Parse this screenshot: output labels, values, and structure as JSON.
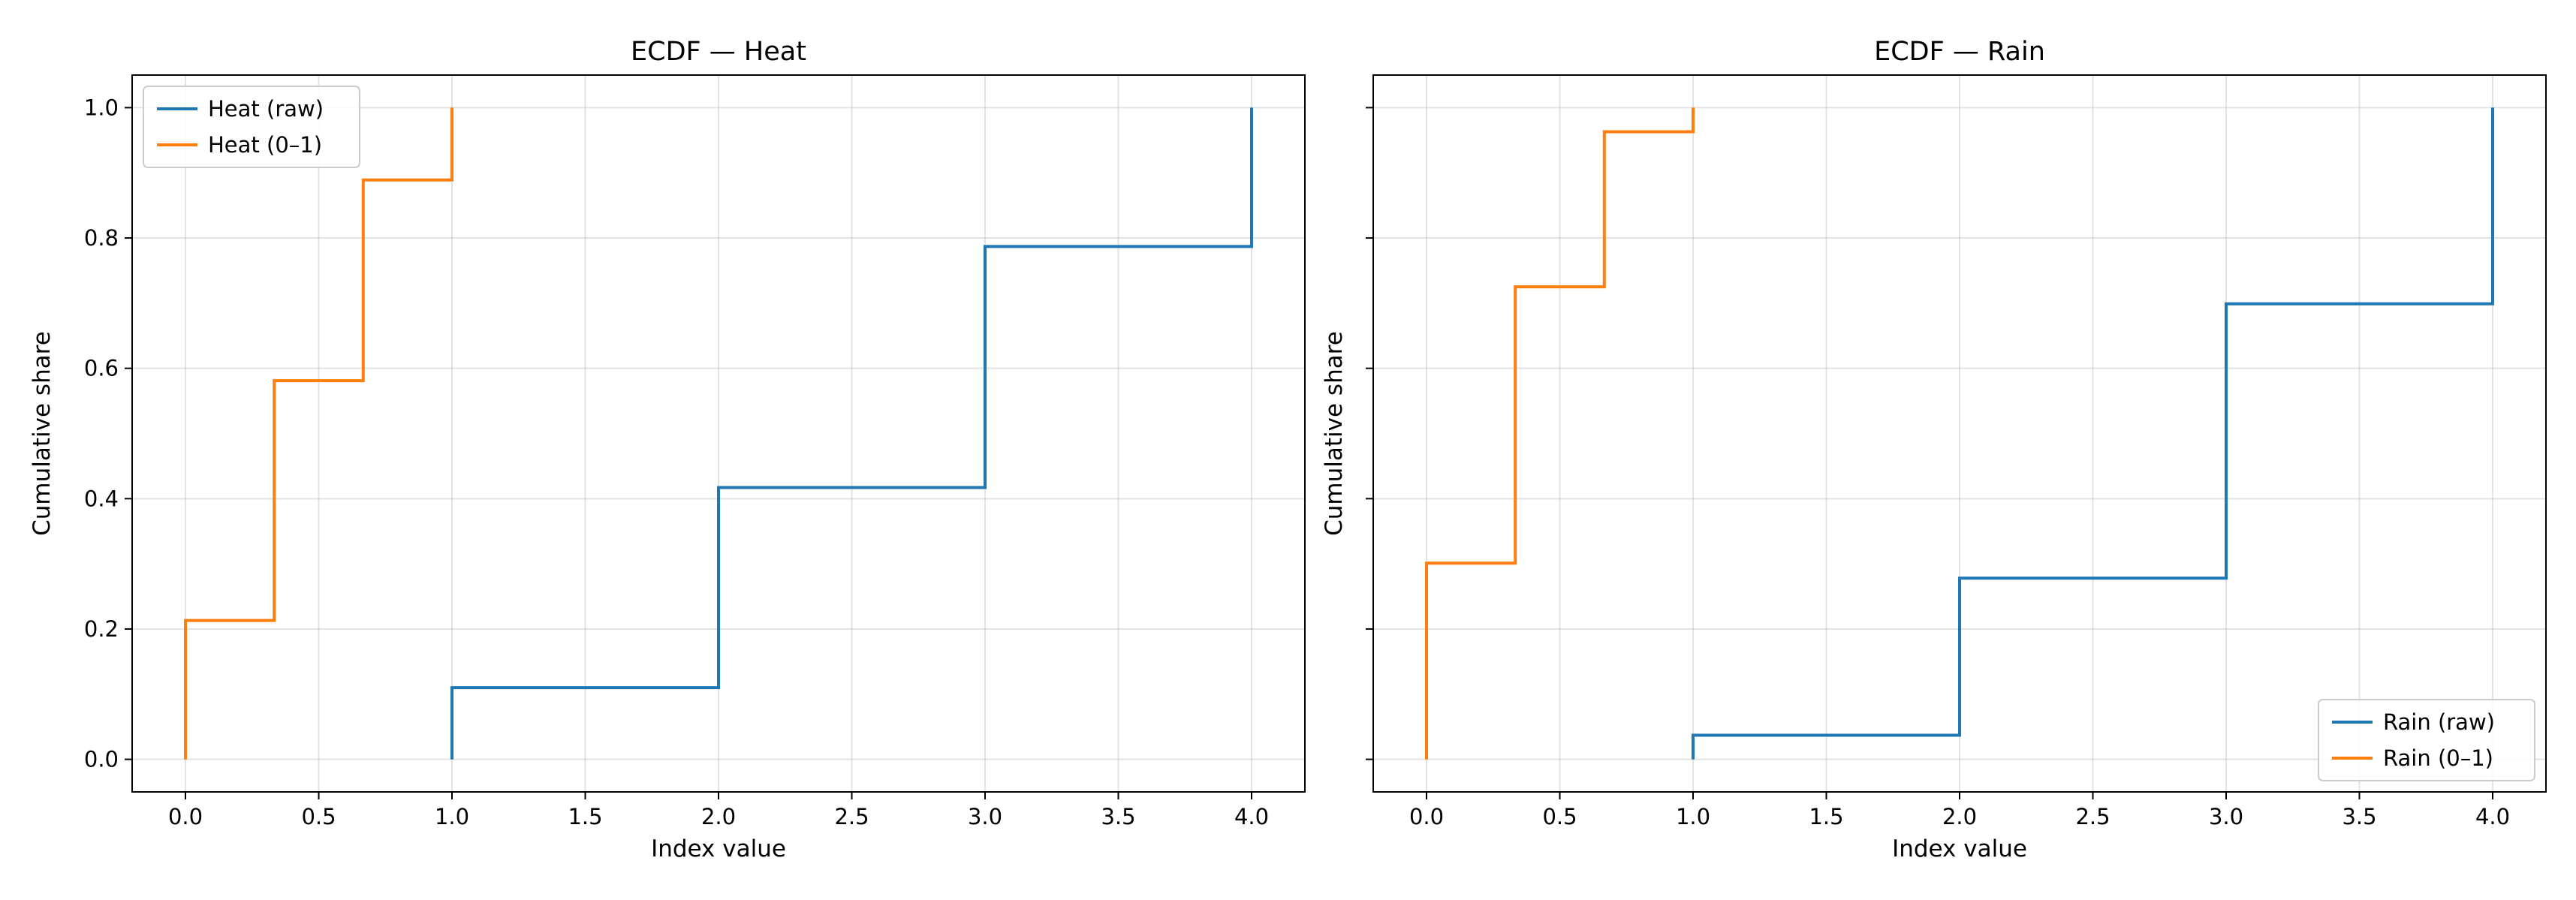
{
  "chart_data": [
    {
      "type": "line",
      "drawstyle": "steps-post",
      "title": "ECDF — Heat",
      "xlabel": "Index value",
      "ylabel": "Cumulative share",
      "xlim": [
        -0.2,
        4.2
      ],
      "ylim": [
        -0.05,
        1.05
      ],
      "xticks": [
        0.0,
        0.5,
        1.0,
        1.5,
        2.0,
        2.5,
        3.0,
        3.5,
        4.0
      ],
      "xtick_labels": [
        "0.0",
        "0.5",
        "1.0",
        "1.5",
        "2.0",
        "2.5",
        "3.0",
        "3.5",
        "4.0"
      ],
      "yticks": [
        0.0,
        0.2,
        0.4,
        0.6,
        0.8,
        1.0
      ],
      "ytick_labels": [
        "0.0",
        "0.2",
        "0.4",
        "0.6",
        "0.8",
        "1.0"
      ],
      "show_ytick_labels": true,
      "grid": true,
      "legend_loc": "top-left",
      "series": [
        {
          "name": "Heat (raw)",
          "color": "#1f77b4",
          "x": [
            1.0,
            1.0,
            2.0,
            3.0,
            4.0
          ],
          "y": [
            0.0,
            0.11,
            0.417,
            0.787,
            1.0
          ]
        },
        {
          "name": "Heat (0–1)",
          "color": "#ff7f0e",
          "x": [
            0.0,
            0.0,
            0.333,
            0.667,
            1.0
          ],
          "y": [
            0.0,
            0.213,
            0.581,
            0.889,
            1.0
          ]
        }
      ]
    },
    {
      "type": "line",
      "drawstyle": "steps-post",
      "title": "ECDF — Rain",
      "xlabel": "Index value",
      "ylabel": "Cumulative share",
      "xlim": [
        -0.2,
        4.2
      ],
      "ylim": [
        -0.05,
        1.05
      ],
      "xticks": [
        0.0,
        0.5,
        1.0,
        1.5,
        2.0,
        2.5,
        3.0,
        3.5,
        4.0
      ],
      "xtick_labels": [
        "0.0",
        "0.5",
        "1.0",
        "1.5",
        "2.0",
        "2.5",
        "3.0",
        "3.5",
        "4.0"
      ],
      "yticks": [
        0.0,
        0.2,
        0.4,
        0.6,
        0.8,
        1.0
      ],
      "ytick_labels": [],
      "show_ytick_labels": false,
      "grid": true,
      "legend_loc": "bottom-right",
      "series": [
        {
          "name": "Rain (raw)",
          "color": "#1f77b4",
          "x": [
            1.0,
            1.0,
            2.0,
            3.0,
            4.0
          ],
          "y": [
            0.0,
            0.037,
            0.278,
            0.699,
            1.0
          ]
        },
        {
          "name": "Rain (0–1)",
          "color": "#ff7f0e",
          "x": [
            0.0,
            0.0,
            0.333,
            0.667,
            1.0
          ],
          "y": [
            0.0,
            0.301,
            0.725,
            0.963,
            1.0
          ]
        }
      ]
    }
  ]
}
